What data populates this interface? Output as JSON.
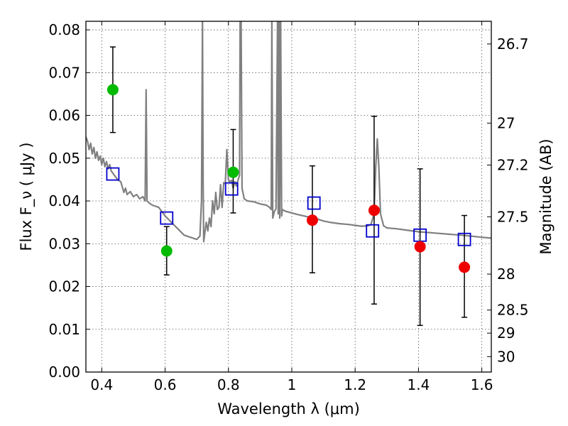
{
  "chart_data": {
    "type": "scatter",
    "title": "",
    "xlabel": "Wavelength  λ (μm)",
    "ylabel": "Flux  F_ν  ( μJy )",
    "ylabel_right": "Magnitude (AB)",
    "xlim": [
      0.35,
      1.63
    ],
    "ylim": [
      0.0,
      0.082
    ],
    "grid": true,
    "x_ticks": [
      0.4,
      0.6,
      0.8,
      1.0,
      1.2,
      1.4,
      1.6
    ],
    "x_tick_labels": [
      "0.4",
      "0.6",
      "0.8",
      "1",
      "1.2",
      "1.4",
      "1.6"
    ],
    "y_ticks": [
      0.0,
      0.01,
      0.02,
      0.03,
      0.04,
      0.05,
      0.06,
      0.07,
      0.08
    ],
    "y_tick_labels": [
      "0.00",
      "0.01",
      "0.02",
      "0.03",
      "0.04",
      "0.05",
      "0.06",
      "0.07",
      "0.08"
    ],
    "mag_ticks": [
      {
        "label": "26.7",
        "flux": 0.0767
      },
      {
        "label": "27",
        "flux": 0.0582
      },
      {
        "label": "27.2",
        "flux": 0.0484
      },
      {
        "label": "27.5",
        "flux": 0.0363
      },
      {
        "label": "28",
        "flux": 0.0229
      },
      {
        "label": "28.5",
        "flux": 0.0145
      },
      {
        "label": "29",
        "flux": 0.0091
      },
      {
        "label": "30",
        "flux": 0.0036
      }
    ],
    "colors": {
      "model": "#808080",
      "green": "#00bb00",
      "red": "#ee0000",
      "square": "#0000cc",
      "errorbar": "#000000",
      "grid": "#555555"
    },
    "series": [
      {
        "kind": "model_spectrum",
        "points": [
          [
            0.35,
            0.055
          ],
          [
            0.355,
            0.054
          ],
          [
            0.36,
            0.052
          ],
          [
            0.365,
            0.0535
          ],
          [
            0.37,
            0.051
          ],
          [
            0.375,
            0.0525
          ],
          [
            0.38,
            0.05
          ],
          [
            0.385,
            0.0515
          ],
          [
            0.39,
            0.0495
          ],
          [
            0.395,
            0.0505
          ],
          [
            0.4,
            0.0485
          ],
          [
            0.405,
            0.05
          ],
          [
            0.41,
            0.048
          ],
          [
            0.415,
            0.0492
          ],
          [
            0.42,
            0.0475
          ],
          [
            0.425,
            0.0485
          ],
          [
            0.43,
            0.047
          ],
          [
            0.44,
            0.046
          ],
          [
            0.45,
            0.045
          ],
          [
            0.46,
            0.0445
          ],
          [
            0.47,
            0.042
          ],
          [
            0.475,
            0.043
          ],
          [
            0.48,
            0.0415
          ],
          [
            0.49,
            0.0422
          ],
          [
            0.5,
            0.041
          ],
          [
            0.51,
            0.0415
          ],
          [
            0.52,
            0.0405
          ],
          [
            0.53,
            0.041
          ],
          [
            0.537,
            0.04
          ],
          [
            0.54,
            0.066
          ],
          [
            0.543,
            0.04
          ],
          [
            0.55,
            0.0395
          ],
          [
            0.56,
            0.039
          ],
          [
            0.58,
            0.0385
          ],
          [
            0.6,
            0.0365
          ],
          [
            0.62,
            0.035
          ],
          [
            0.64,
            0.0335
          ],
          [
            0.66,
            0.032
          ],
          [
            0.68,
            0.0315
          ],
          [
            0.7,
            0.031
          ],
          [
            0.71,
            0.0318
          ],
          [
            0.715,
            0.04
          ],
          [
            0.718,
            0.082
          ],
          [
            0.72,
            0.045
          ],
          [
            0.722,
            0.0305
          ],
          [
            0.73,
            0.035
          ],
          [
            0.735,
            0.033
          ],
          [
            0.74,
            0.036
          ],
          [
            0.745,
            0.034
          ],
          [
            0.75,
            0.04
          ],
          [
            0.755,
            0.037
          ],
          [
            0.76,
            0.042
          ],
          [
            0.765,
            0.038
          ],
          [
            0.77,
            0.0385
          ],
          [
            0.775,
            0.0438
          ],
          [
            0.78,
            0.0385
          ],
          [
            0.785,
            0.0443
          ],
          [
            0.79,
            0.044
          ],
          [
            0.795,
            0.052
          ],
          [
            0.8,
            0.045
          ],
          [
            0.805,
            0.0445
          ],
          [
            0.81,
            0.0448
          ],
          [
            0.815,
            0.043
          ],
          [
            0.82,
            0.0445
          ],
          [
            0.825,
            0.0435
          ],
          [
            0.83,
            0.0448
          ],
          [
            0.835,
            0.046
          ],
          [
            0.837,
            0.082
          ],
          [
            0.84,
            0.082
          ],
          [
            0.843,
            0.043
          ],
          [
            0.85,
            0.0405
          ],
          [
            0.86,
            0.04
          ],
          [
            0.88,
            0.0398
          ],
          [
            0.9,
            0.0393
          ],
          [
            0.92,
            0.039
          ],
          [
            0.93,
            0.0385
          ],
          [
            0.935,
            0.038
          ],
          [
            0.937,
            0.082
          ],
          [
            0.94,
            0.036
          ],
          [
            0.945,
            0.0375
          ],
          [
            0.95,
            0.0382
          ],
          [
            0.955,
            0.082
          ],
          [
            0.957,
            0.037
          ],
          [
            0.96,
            0.082
          ],
          [
            0.962,
            0.036
          ],
          [
            0.965,
            0.082
          ],
          [
            0.968,
            0.0365
          ],
          [
            0.97,
            0.038
          ],
          [
            0.975,
            0.0378
          ],
          [
            0.98,
            0.0376
          ],
          [
            1.0,
            0.0372
          ],
          [
            1.02,
            0.0368
          ],
          [
            1.05,
            0.0363
          ],
          [
            1.08,
            0.0358
          ],
          [
            1.1,
            0.0353
          ],
          [
            1.12,
            0.035
          ],
          [
            1.15,
            0.0347
          ],
          [
            1.18,
            0.0345
          ],
          [
            1.2,
            0.0343
          ],
          [
            1.22,
            0.0341
          ],
          [
            1.24,
            0.0342
          ],
          [
            1.25,
            0.0345
          ],
          [
            1.26,
            0.037
          ],
          [
            1.265,
            0.048
          ],
          [
            1.27,
            0.0545
          ],
          [
            1.275,
            0.048
          ],
          [
            1.28,
            0.037
          ],
          [
            1.29,
            0.0342
          ],
          [
            1.3,
            0.0337
          ],
          [
            1.33,
            0.0335
          ],
          [
            1.36,
            0.0332
          ],
          [
            1.4,
            0.0328
          ],
          [
            1.45,
            0.0325
          ],
          [
            1.5,
            0.0322
          ],
          [
            1.55,
            0.0319
          ],
          [
            1.6,
            0.0315
          ],
          [
            1.63,
            0.0313
          ]
        ]
      },
      {
        "kind": "observed_green",
        "points": [
          {
            "x": 0.435,
            "y": 0.066,
            "err_low": 0.056,
            "err_high": 0.076
          },
          {
            "x": 0.605,
            "y": 0.0283,
            "err_low": 0.0227,
            "err_high": 0.034
          },
          {
            "x": 0.815,
            "y": 0.0467,
            "err_low": 0.0372,
            "err_high": 0.0567
          }
        ]
      },
      {
        "kind": "observed_red",
        "points": [
          {
            "x": 1.065,
            "y": 0.0355,
            "err_low": 0.0232,
            "err_high": 0.0482
          },
          {
            "x": 1.26,
            "y": 0.0378,
            "err_low": 0.0159,
            "err_high": 0.0598
          },
          {
            "x": 1.405,
            "y": 0.0293,
            "err_low": 0.0109,
            "err_high": 0.0475
          },
          {
            "x": 1.545,
            "y": 0.0245,
            "err_low": 0.0128,
            "err_high": 0.0366
          }
        ]
      },
      {
        "kind": "model_photometry",
        "points": [
          {
            "x": 0.435,
            "y": 0.0463
          },
          {
            "x": 0.605,
            "y": 0.036
          },
          {
            "x": 0.81,
            "y": 0.0428
          },
          {
            "x": 1.07,
            "y": 0.0395
          },
          {
            "x": 1.255,
            "y": 0.033
          },
          {
            "x": 1.405,
            "y": 0.032
          },
          {
            "x": 1.545,
            "y": 0.031
          }
        ]
      }
    ]
  }
}
